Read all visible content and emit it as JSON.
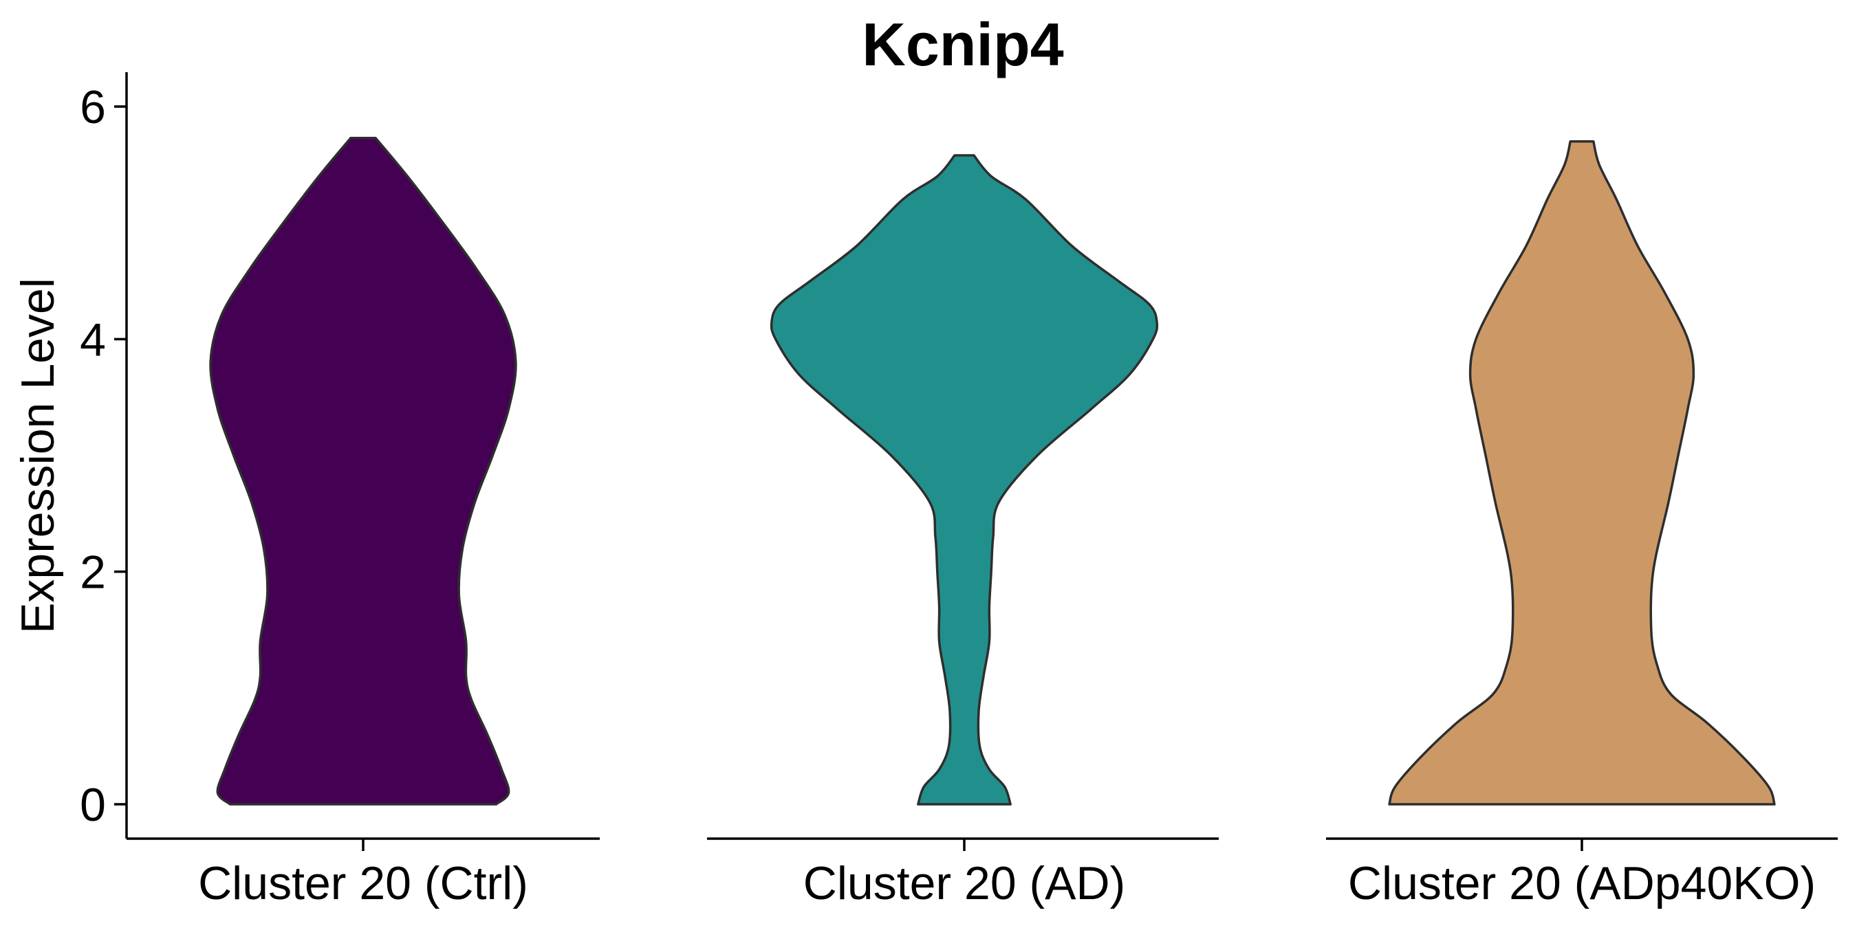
{
  "chart_data": {
    "type": "violin",
    "title": "Kcnip4",
    "xlabel": "",
    "ylabel": "Expression Level",
    "ylim": [
      -0.3,
      6.3
    ],
    "y_ticks": [
      "0",
      "2",
      "4",
      "6"
    ],
    "categories": [
      "Cluster 20 (Ctrl)",
      "Cluster 20 (AD)",
      "Cluster 20 (ADp40KO)"
    ],
    "colors": [
      "#440154",
      "#21908C",
      "#CC9966"
    ],
    "grid": false,
    "legend": "none",
    "series": [
      {
        "max": 5.73,
        "profile": [
          [
            0,
            0.75
          ],
          [
            0.1,
            0.82
          ],
          [
            0.3,
            0.78
          ],
          [
            0.6,
            0.7
          ],
          [
            0.9,
            0.61
          ],
          [
            1.1,
            0.58
          ],
          [
            1.4,
            0.58
          ],
          [
            1.8,
            0.54
          ],
          [
            2.2,
            0.56
          ],
          [
            2.6,
            0.63
          ],
          [
            3.0,
            0.73
          ],
          [
            3.4,
            0.82
          ],
          [
            3.8,
            0.86
          ],
          [
            4.2,
            0.8
          ],
          [
            4.6,
            0.64
          ],
          [
            5.0,
            0.45
          ],
          [
            5.4,
            0.25
          ],
          [
            5.73,
            0.07
          ]
        ]
      },
      {
        "max": 5.58,
        "profile": [
          [
            0,
            0.24
          ],
          [
            0.15,
            0.21
          ],
          [
            0.3,
            0.13
          ],
          [
            0.5,
            0.08
          ],
          [
            0.8,
            0.075
          ],
          [
            1.1,
            0.1
          ],
          [
            1.4,
            0.13
          ],
          [
            1.7,
            0.13
          ],
          [
            2.0,
            0.14
          ],
          [
            2.3,
            0.15
          ],
          [
            2.6,
            0.18
          ],
          [
            3.0,
            0.38
          ],
          [
            3.4,
            0.66
          ],
          [
            3.7,
            0.86
          ],
          [
            4.0,
            0.98
          ],
          [
            4.15,
            1.0
          ],
          [
            4.3,
            0.96
          ],
          [
            4.5,
            0.8
          ],
          [
            4.8,
            0.56
          ],
          [
            5.2,
            0.32
          ],
          [
            5.4,
            0.14
          ],
          [
            5.58,
            0.05
          ]
        ]
      },
      {
        "max": 5.7,
        "profile": [
          [
            0,
            1.0
          ],
          [
            0.15,
            0.97
          ],
          [
            0.4,
            0.84
          ],
          [
            0.7,
            0.65
          ],
          [
            0.95,
            0.46
          ],
          [
            1.2,
            0.39
          ],
          [
            1.5,
            0.36
          ],
          [
            2.0,
            0.37
          ],
          [
            2.6,
            0.45
          ],
          [
            3.0,
            0.5
          ],
          [
            3.4,
            0.55
          ],
          [
            3.7,
            0.58
          ],
          [
            4.0,
            0.55
          ],
          [
            4.4,
            0.43
          ],
          [
            4.8,
            0.29
          ],
          [
            5.2,
            0.18
          ],
          [
            5.5,
            0.09
          ],
          [
            5.7,
            0.06
          ]
        ]
      }
    ]
  }
}
